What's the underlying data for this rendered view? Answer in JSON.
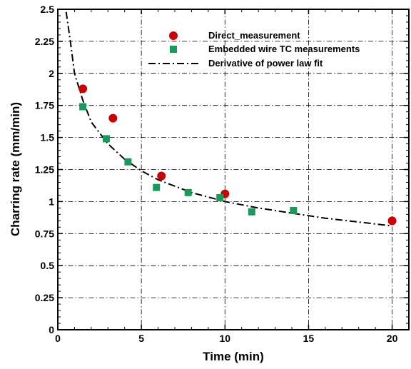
{
  "chart_data": {
    "type": "scatter",
    "xlabel": "Time  (min)",
    "ylabel": "Charring  rate  (mm/min)",
    "xlim": [
      0,
      21
    ],
    "ylim": [
      0,
      2.5
    ],
    "x_ticks": [
      0,
      5,
      10,
      15,
      20
    ],
    "x_tick_labels": [
      "0",
      "5",
      "10",
      "15",
      "20"
    ],
    "y_ticks": [
      0,
      0.25,
      0.5,
      0.75,
      1,
      1.25,
      1.5,
      1.75,
      2,
      2.25,
      2.5
    ],
    "y_tick_labels": [
      "0",
      "0.25",
      "0.5",
      "0.75",
      "1",
      "1.25",
      "1.5",
      "1.75",
      "2",
      "2.25",
      "2.5"
    ],
    "grid": true,
    "legend_position": "top-right",
    "series": [
      {
        "name": "Direct_measurement",
        "marker": "circle",
        "color": "#cc0000",
        "points": [
          {
            "x": 1.5,
            "y": 1.88
          },
          {
            "x": 3.3,
            "y": 1.65
          },
          {
            "x": 6.2,
            "y": 1.2
          },
          {
            "x": 10.0,
            "y": 1.06
          },
          {
            "x": 20.0,
            "y": 0.85
          }
        ]
      },
      {
        "name": "Embedded wire TC measurements",
        "marker": "square",
        "color": "#1a9a5a",
        "points": [
          {
            "x": 1.5,
            "y": 1.74
          },
          {
            "x": 2.9,
            "y": 1.49
          },
          {
            "x": 4.2,
            "y": 1.31
          },
          {
            "x": 5.9,
            "y": 1.11
          },
          {
            "x": 7.8,
            "y": 1.07
          },
          {
            "x": 9.7,
            "y": 1.03
          },
          {
            "x": 11.6,
            "y": 0.92
          },
          {
            "x": 14.1,
            "y": 0.93
          }
        ]
      },
      {
        "name": "Derivative  of  power law fit",
        "line": "dash-dot",
        "color": "#000000",
        "points": [
          {
            "x": 0.5,
            "y": 2.48
          },
          {
            "x": 0.75,
            "y": 2.25
          },
          {
            "x": 1.0,
            "y": 2.0
          },
          {
            "x": 1.5,
            "y": 1.79
          },
          {
            "x": 2.0,
            "y": 1.62
          },
          {
            "x": 3.0,
            "y": 1.45
          },
          {
            "x": 4.0,
            "y": 1.33
          },
          {
            "x": 5.0,
            "y": 1.24
          },
          {
            "x": 6.0,
            "y": 1.17
          },
          {
            "x": 8.0,
            "y": 1.07
          },
          {
            "x": 10.0,
            "y": 1.0
          },
          {
            "x": 12.0,
            "y": 0.95
          },
          {
            "x": 14.0,
            "y": 0.91
          },
          {
            "x": 16.0,
            "y": 0.87
          },
          {
            "x": 18.0,
            "y": 0.84
          },
          {
            "x": 20.0,
            "y": 0.81
          }
        ]
      }
    ]
  }
}
